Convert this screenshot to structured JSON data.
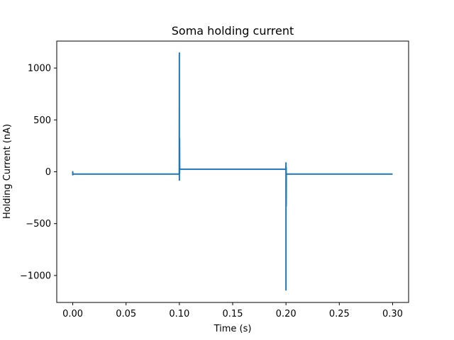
{
  "chart_data": {
    "type": "line",
    "title": "Soma holding current",
    "xlabel": "Time (s)",
    "ylabel": "Holding Current (nA)",
    "xlim": [
      -0.015,
      0.315
    ],
    "ylim": [
      -1260,
      1260
    ],
    "x_ticks": [
      0.0,
      0.05,
      0.1,
      0.15,
      0.2,
      0.25,
      0.3
    ],
    "x_tick_labels": [
      "0.00",
      "0.05",
      "0.10",
      "0.15",
      "0.20",
      "0.25",
      "0.30"
    ],
    "y_ticks": [
      -1000,
      -500,
      0,
      500,
      1000
    ],
    "y_tick_labels": [
      "−1000",
      "−500",
      "0",
      "500",
      "1000"
    ],
    "grid": false,
    "legend": "none",
    "series": [
      {
        "color": "#1f77b4",
        "x": [
          0.0,
          0.0,
          0.0,
          0.0,
          0.0001,
          0.0999,
          0.1,
          0.1,
          0.1,
          0.1001,
          0.1002,
          0.1002,
          0.1003,
          0.1004,
          0.1006,
          0.1999,
          0.2,
          0.2,
          0.2,
          0.2001,
          0.2002,
          0.2002,
          0.2003,
          0.2006,
          0.3
        ],
        "y": [
          -5,
          -30,
          0,
          -20,
          -22,
          -22,
          1145,
          -80,
          0,
          320,
          -20,
          320,
          35,
          25,
          25,
          25,
          85,
          -1140,
          0,
          -330,
          40,
          -330,
          -20,
          -22,
          -22
        ]
      }
    ]
  }
}
